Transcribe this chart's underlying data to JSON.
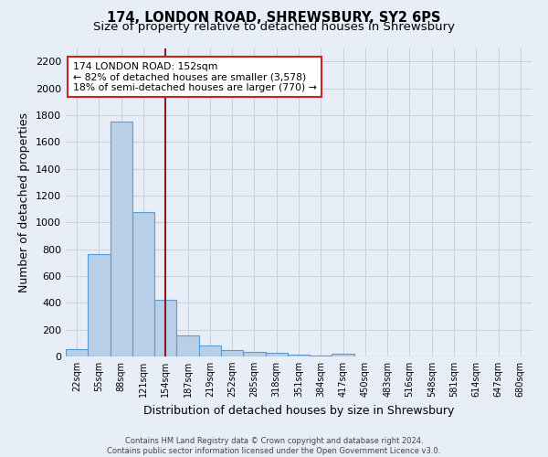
{
  "title1": "174, LONDON ROAD, SHREWSBURY, SY2 6PS",
  "title2": "Size of property relative to detached houses in Shrewsbury",
  "xlabel": "Distribution of detached houses by size in Shrewsbury",
  "ylabel": "Number of detached properties",
  "footer1": "Contains HM Land Registry data © Crown copyright and database right 2024.",
  "footer2": "Contains public sector information licensed under the Open Government Licence v3.0.",
  "bin_labels": [
    "22sqm",
    "55sqm",
    "88sqm",
    "121sqm",
    "154sqm",
    "187sqm",
    "219sqm",
    "252sqm",
    "285sqm",
    "318sqm",
    "351sqm",
    "384sqm",
    "417sqm",
    "450sqm",
    "483sqm",
    "516sqm",
    "548sqm",
    "581sqm",
    "614sqm",
    "647sqm",
    "680sqm"
  ],
  "bar_values": [
    55,
    760,
    1750,
    1075,
    420,
    155,
    80,
    45,
    35,
    25,
    15,
    10,
    20,
    0,
    0,
    0,
    0,
    0,
    0,
    0,
    0
  ],
  "bar_color": "#b8cfe8",
  "bar_edge_color": "#5b9bd5",
  "bar_width": 1.0,
  "property_label": "174 LONDON ROAD: 152sqm",
  "annotation_line1": "← 82% of detached houses are smaller (3,578)",
  "annotation_line2": "18% of semi-detached houses are larger (770) →",
  "vline_color": "#8b1a1a",
  "vline_x": 3.97,
  "annotation_box_color": "#ffffff",
  "annotation_box_edge": "#cc2222",
  "ylim": [
    0,
    2300
  ],
  "yticks": [
    0,
    200,
    400,
    600,
    800,
    1000,
    1200,
    1400,
    1600,
    1800,
    2000,
    2200
  ],
  "grid_color": "#c8d0dc",
  "background_color": "#e8eef8",
  "title1_fontsize": 10.5,
  "title2_fontsize": 9.5
}
